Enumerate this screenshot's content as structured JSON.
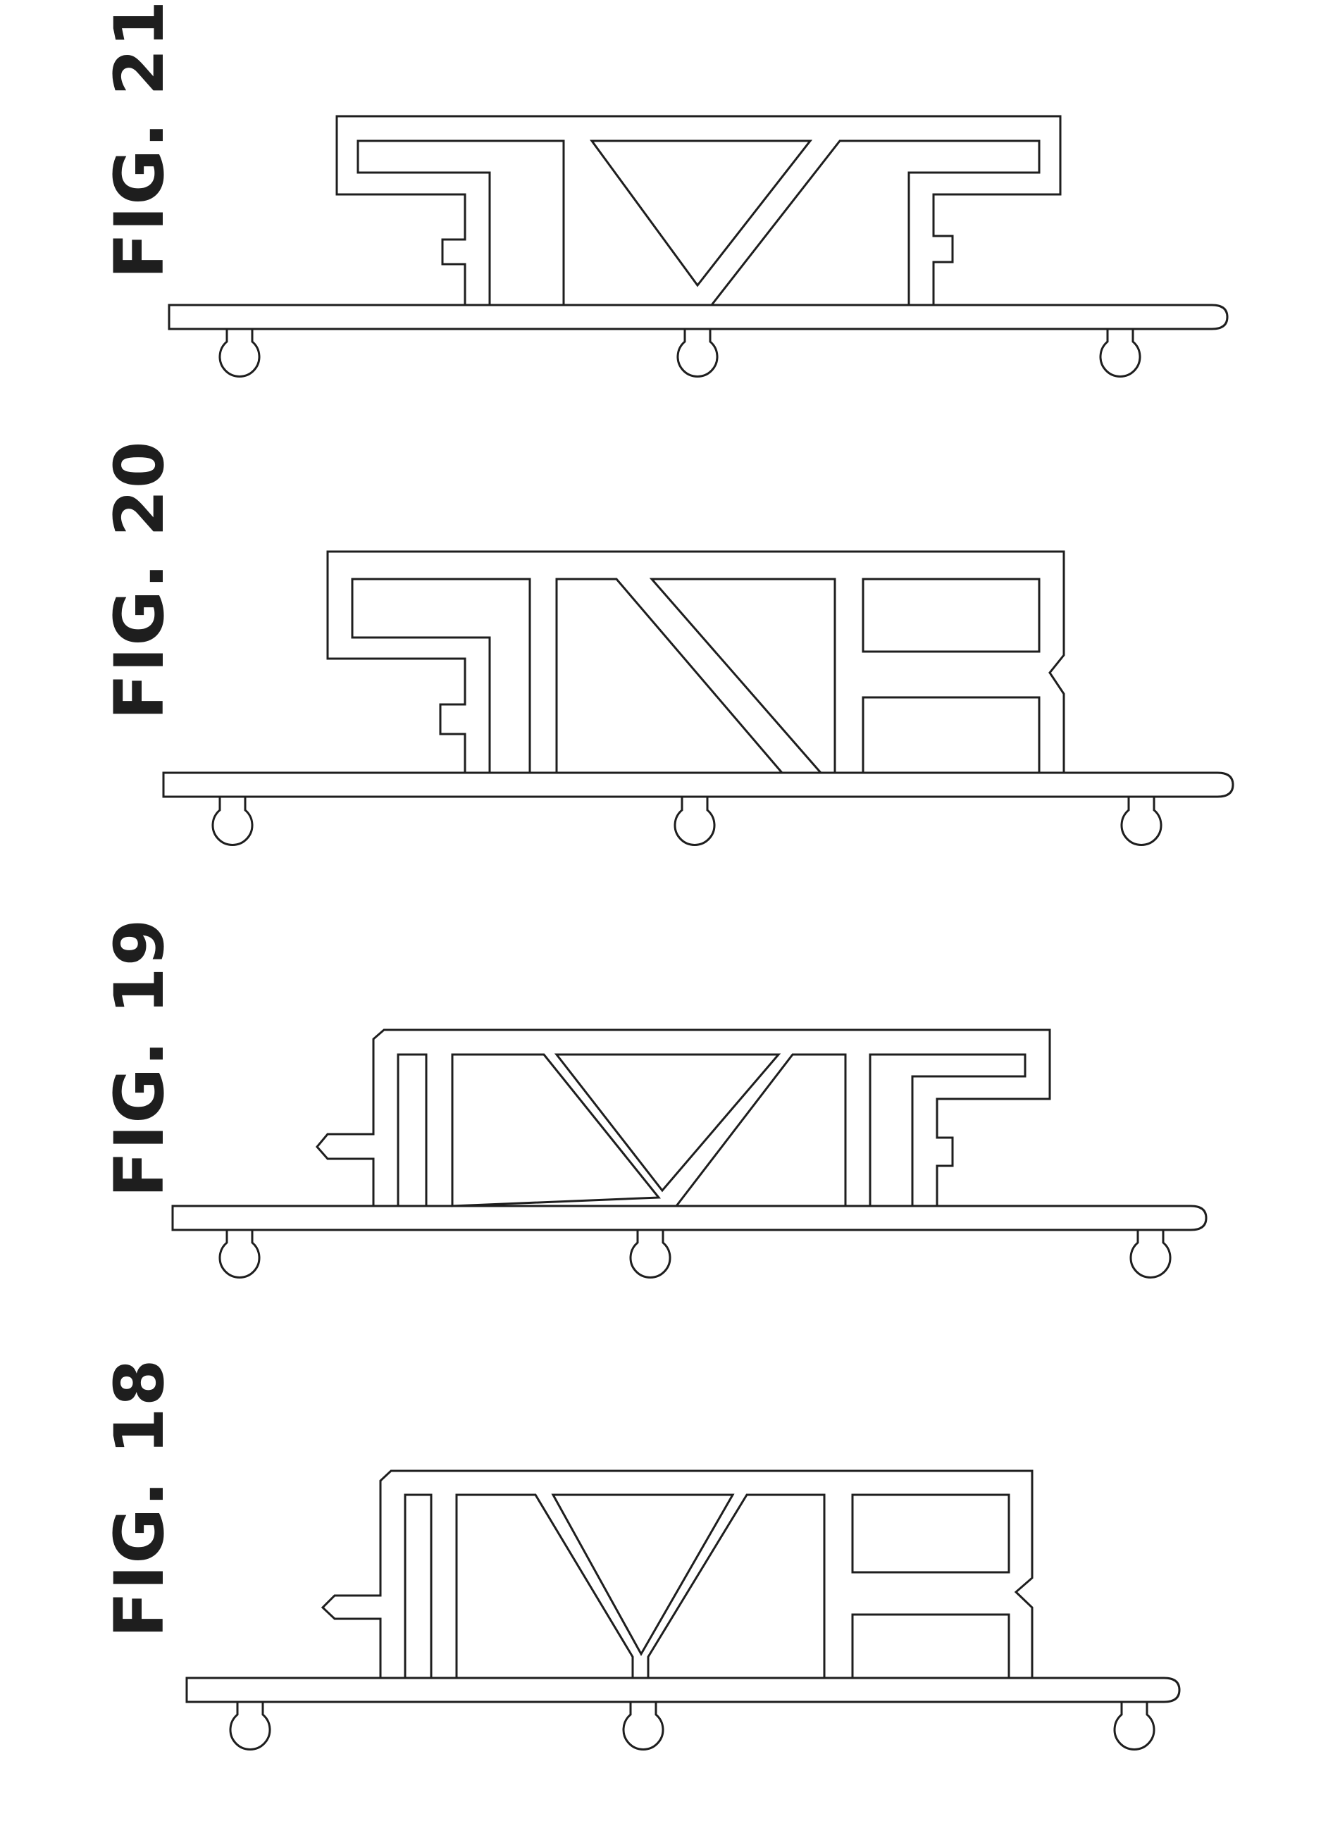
{
  "figures": [
    {
      "id": "fig21",
      "label": "FIG. 21"
    },
    {
      "id": "fig20",
      "label": "FIG. 20"
    },
    {
      "id": "fig19",
      "label": "FIG. 19"
    },
    {
      "id": "fig18",
      "label": "FIG. 18"
    }
  ],
  "colors": {
    "line": "#1e1e1e",
    "background": "#ffffff"
  }
}
